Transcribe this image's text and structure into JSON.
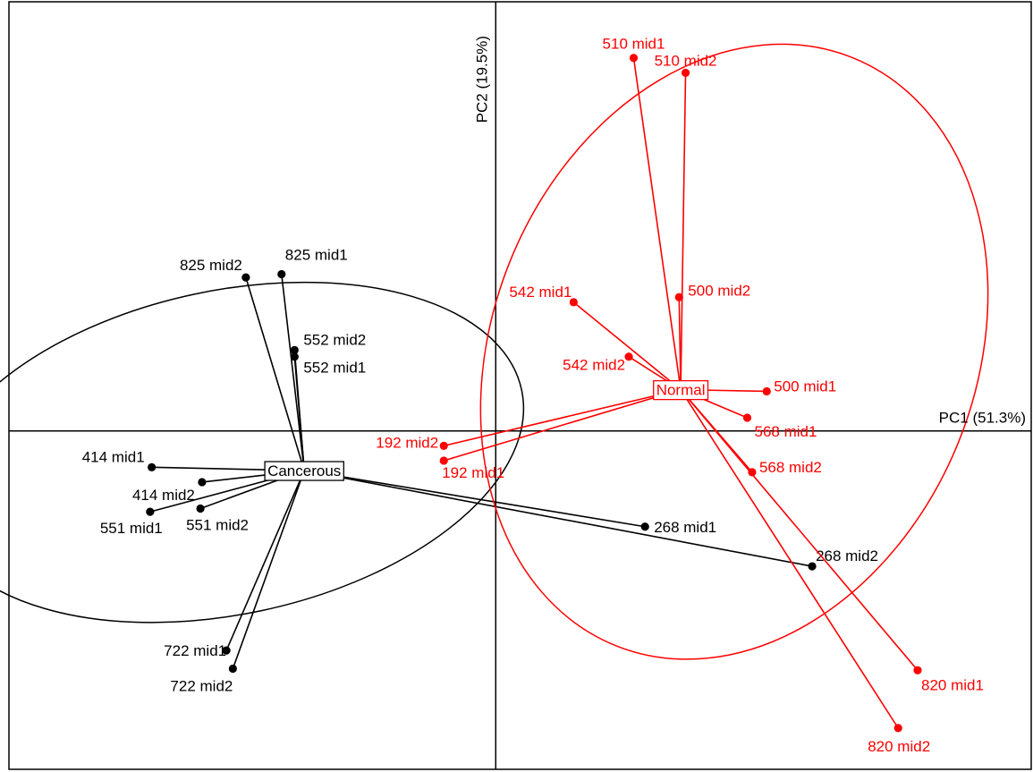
{
  "chart_data": {
    "type": "scatter",
    "subtype": "pca-class-scatter",
    "xlabel": "PC1 (51.3%)",
    "ylabel": "PC2 (19.5%)",
    "xlim": [
      -3.0,
      3.3
    ],
    "ylim": [
      -2.05,
      2.6
    ],
    "grid": false,
    "origin_axes": true,
    "legend": "none",
    "groups": [
      {
        "name": "Cancerous",
        "color": "#000000",
        "center": {
          "x": -1.18,
          "y": -0.24
        },
        "ellipse": {
          "cx": -1.65,
          "cy": -0.13,
          "rx": 1.85,
          "ry": 0.98,
          "angle_deg": 12
        },
        "points": [
          {
            "label": "825 mid1",
            "x": -1.32,
            "y": 0.95
          },
          {
            "label": "825 mid2",
            "x": -1.54,
            "y": 0.93
          },
          {
            "label": "552 mid2",
            "x": -1.24,
            "y": 0.49
          },
          {
            "label": "552 mid1",
            "x": -1.24,
            "y": 0.45
          },
          {
            "label": "414 mid1",
            "x": -2.12,
            "y": -0.22
          },
          {
            "label": "414 mid2",
            "x": -1.81,
            "y": -0.31
          },
          {
            "label": "551 mid1",
            "x": -2.13,
            "y": -0.49
          },
          {
            "label": "551 mid2",
            "x": -1.82,
            "y": -0.47
          },
          {
            "label": "268 mid1",
            "x": 0.92,
            "y": -0.58
          },
          {
            "label": "268 mid2",
            "x": 1.95,
            "y": -0.82
          },
          {
            "label": "722 mid1",
            "x": -1.66,
            "y": -1.33
          },
          {
            "label": "722 mid2",
            "x": -1.62,
            "y": -1.44
          }
        ]
      },
      {
        "name": "Normal",
        "color": "#ff0000",
        "center": {
          "x": 1.14,
          "y": 0.25
        },
        "ellipse": {
          "cx": 1.47,
          "cy": 0.48,
          "rx": 1.49,
          "ry": 1.92,
          "angle_deg": -22
        },
        "points": [
          {
            "label": "510 mid1",
            "x": 0.85,
            "y": 2.26
          },
          {
            "label": "510 mid2",
            "x": 1.17,
            "y": 2.17
          },
          {
            "label": "542 mid1",
            "x": 0.48,
            "y": 0.78
          },
          {
            "label": "500 mid2",
            "x": 1.13,
            "y": 0.81
          },
          {
            "label": "542 mid2",
            "x": 0.82,
            "y": 0.45
          },
          {
            "label": "500 mid1",
            "x": 1.67,
            "y": 0.24
          },
          {
            "label": "568 mid1",
            "x": 1.55,
            "y": 0.08
          },
          {
            "label": "192 mid2",
            "x": -0.32,
            "y": -0.09
          },
          {
            "label": "192 mid1",
            "x": -0.32,
            "y": -0.18
          },
          {
            "label": "568 mid2",
            "x": 1.58,
            "y": -0.25
          },
          {
            "label": "820 mid1",
            "x": 2.6,
            "y": -1.45
          },
          {
            "label": "820 mid2",
            "x": 2.48,
            "y": -1.8
          }
        ]
      }
    ]
  }
}
